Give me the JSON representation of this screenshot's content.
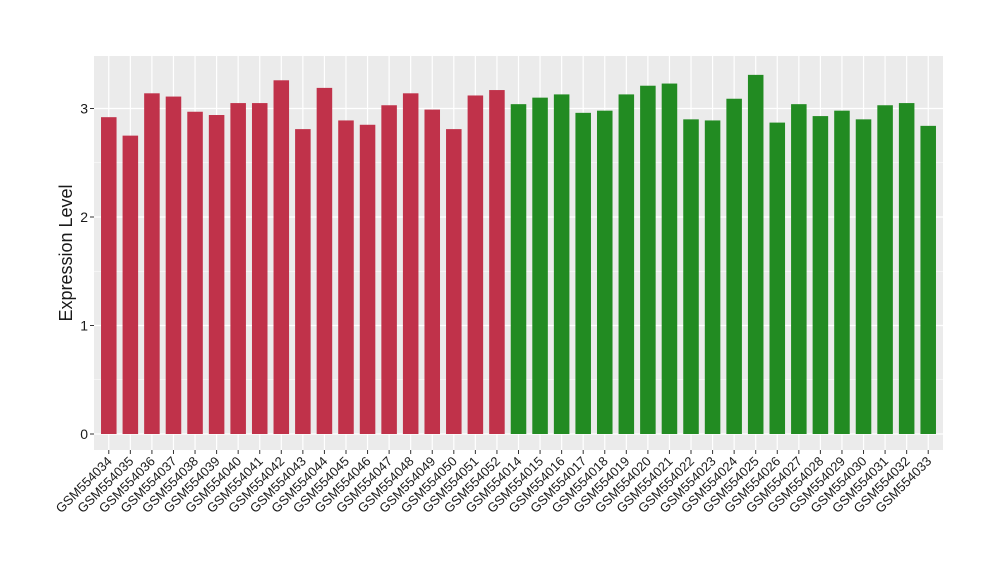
{
  "chart_data": {
    "type": "bar",
    "title": "",
    "xlabel": "",
    "ylabel": "Expression Level",
    "ylim": [
      0,
      3.5
    ],
    "yticks": [
      0,
      1,
      2,
      3
    ],
    "grid": true,
    "legend": "none",
    "colors": {
      "panel": "#ebebeb",
      "grid": "#ffffff",
      "group_a": "#c0324a",
      "group_b": "#228b22",
      "text": "#1a1a1a"
    },
    "categories": [
      "GSM554034",
      "GSM554035",
      "GSM554036",
      "GSM554037",
      "GSM554038",
      "GSM554039",
      "GSM554040",
      "GSM554041",
      "GSM554042",
      "GSM554043",
      "GSM554044",
      "GSM554045",
      "GSM554046",
      "GSM554047",
      "GSM554048",
      "GSM554049",
      "GSM554050",
      "GSM554051",
      "GSM554052",
      "GSM554014",
      "GSM554015",
      "GSM554016",
      "GSM554017",
      "GSM554018",
      "GSM554019",
      "GSM554020",
      "GSM554021",
      "GSM554022",
      "GSM554023",
      "GSM554024",
      "GSM554025",
      "GSM554026",
      "GSM554027",
      "GSM554028",
      "GSM554029",
      "GSM554030",
      "GSM554031",
      "GSM554032",
      "GSM554033"
    ],
    "values": [
      2.92,
      2.75,
      3.14,
      3.11,
      2.97,
      2.94,
      3.05,
      3.05,
      3.26,
      2.81,
      3.19,
      2.89,
      2.85,
      3.03,
      3.14,
      2.99,
      2.81,
      3.12,
      3.17,
      3.04,
      3.1,
      3.13,
      2.96,
      2.98,
      3.13,
      3.21,
      3.23,
      2.9,
      2.89,
      3.09,
      3.31,
      2.87,
      3.04,
      2.93,
      2.98,
      2.9,
      3.03,
      3.05,
      2.84
    ],
    "groups": [
      "a",
      "a",
      "a",
      "a",
      "a",
      "a",
      "a",
      "a",
      "a",
      "a",
      "a",
      "a",
      "a",
      "a",
      "a",
      "a",
      "a",
      "a",
      "a",
      "b",
      "b",
      "b",
      "b",
      "b",
      "b",
      "b",
      "b",
      "b",
      "b",
      "b",
      "b",
      "b",
      "b",
      "b",
      "b",
      "b",
      "b",
      "b",
      "b"
    ]
  }
}
